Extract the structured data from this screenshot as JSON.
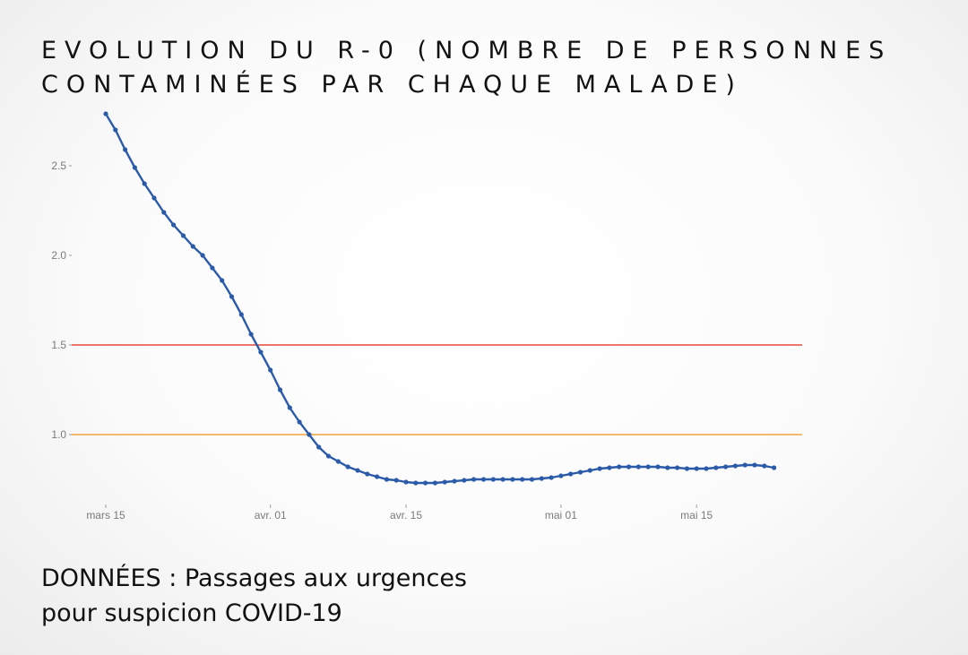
{
  "header": {
    "title": "EVOLUTION DU R-0 (NOMBRE DE PERSONNES CONTAMINÉES PAR CHAQUE MALADE)"
  },
  "footer": {
    "line1": "DONNÉES : Passages aux urgences",
    "line2": "pour suspicion COVID-19"
  },
  "colors": {
    "series": "#2b5ba8",
    "threshold_high": "#e8483a",
    "threshold_low": "#f2a33a"
  },
  "chart_data": {
    "type": "line",
    "title": "EVOLUTION DU R-0 (NOMBRE DE PERSONNES CONTAMINÉES PAR CHAQUE MALADE)",
    "xlabel": "",
    "ylabel": "",
    "x_start": "2020-03-15",
    "x_tick_labels": [
      "mars 15",
      "avr. 01",
      "avr. 15",
      "mai 01",
      "mai 15"
    ],
    "x_tick_dates": [
      "2020-03-15",
      "2020-04-01",
      "2020-04-15",
      "2020-05-01",
      "2020-05-15"
    ],
    "x_range": [
      "2020-03-13",
      "2020-06-01"
    ],
    "y_tick_labels": [
      "1.0",
      "1.5",
      "2.0",
      "2.5"
    ],
    "y_ticks": [
      1.0,
      1.5,
      2.0,
      2.5
    ],
    "ylim": [
      0.55,
      3.0
    ],
    "grid": false,
    "reference_lines": [
      {
        "y": 1.5,
        "color": "#e8483a"
      },
      {
        "y": 1.0,
        "color": "#f2a33a"
      }
    ],
    "series": [
      {
        "dates": [
          "2020-03-15",
          "2020-03-16",
          "2020-03-17",
          "2020-03-18",
          "2020-03-19",
          "2020-03-20",
          "2020-03-21",
          "2020-03-22",
          "2020-03-23",
          "2020-03-24",
          "2020-03-25",
          "2020-03-26",
          "2020-03-27",
          "2020-03-28",
          "2020-03-29",
          "2020-03-30",
          "2020-03-31",
          "2020-04-01",
          "2020-04-02",
          "2020-04-03",
          "2020-04-04",
          "2020-04-05",
          "2020-04-06",
          "2020-04-07",
          "2020-04-08",
          "2020-04-09",
          "2020-04-10",
          "2020-04-11",
          "2020-04-12",
          "2020-04-13",
          "2020-04-14",
          "2020-04-15",
          "2020-04-16",
          "2020-04-17",
          "2020-04-18",
          "2020-04-19",
          "2020-04-20",
          "2020-04-21",
          "2020-04-22",
          "2020-04-23",
          "2020-04-24",
          "2020-04-25",
          "2020-04-26",
          "2020-04-27",
          "2020-04-28",
          "2020-04-29",
          "2020-04-30",
          "2020-05-01",
          "2020-05-02",
          "2020-05-03",
          "2020-05-04",
          "2020-05-05",
          "2020-05-06",
          "2020-05-07",
          "2020-05-08",
          "2020-05-09",
          "2020-05-10",
          "2020-05-11",
          "2020-05-12",
          "2020-05-13",
          "2020-05-14",
          "2020-05-15",
          "2020-05-16",
          "2020-05-17",
          "2020-05-18",
          "2020-05-19",
          "2020-05-20",
          "2020-05-21",
          "2020-05-22",
          "2020-05-23"
        ],
        "values": [
          2.79,
          2.7,
          2.59,
          2.49,
          2.4,
          2.32,
          2.24,
          2.17,
          2.11,
          2.05,
          2.0,
          1.93,
          1.86,
          1.77,
          1.67,
          1.56,
          1.46,
          1.36,
          1.25,
          1.15,
          1.07,
          1.0,
          0.93,
          0.88,
          0.85,
          0.82,
          0.8,
          0.78,
          0.765,
          0.75,
          0.745,
          0.735,
          0.73,
          0.73,
          0.73,
          0.735,
          0.74,
          0.745,
          0.75,
          0.75,
          0.75,
          0.75,
          0.75,
          0.75,
          0.75,
          0.755,
          0.76,
          0.77,
          0.78,
          0.79,
          0.8,
          0.81,
          0.815,
          0.82,
          0.82,
          0.82,
          0.82,
          0.82,
          0.815,
          0.815,
          0.81,
          0.81,
          0.81,
          0.815,
          0.82,
          0.825,
          0.83,
          0.83,
          0.825,
          0.815
        ]
      }
    ]
  }
}
